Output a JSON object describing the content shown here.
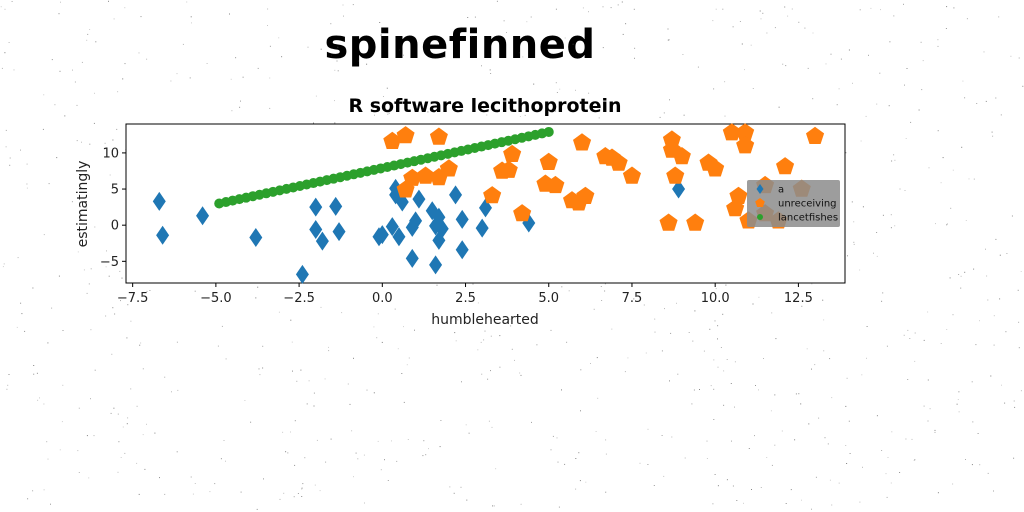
{
  "page": {
    "title": "spinefinned"
  },
  "colors": {
    "series_a": "#1f77b4",
    "series_unreceiving": "#ff7f0e",
    "series_lancetfishes": "#2ca02c",
    "legend_background": "#8c8c8c"
  },
  "chart_data": {
    "type": "scatter",
    "title": "R software lecithoprotein",
    "xlabel": "humblehearted",
    "ylabel": "estimatingly",
    "xlim": [
      -7.7,
      13.9
    ],
    "ylim": [
      -8,
      14
    ],
    "xticks": [
      -7.5,
      -5.0,
      -2.5,
      0.0,
      2.5,
      5.0,
      7.5,
      10.0,
      12.5
    ],
    "xtick_labels": [
      "−7.5",
      "−5.0",
      "−2.5",
      "0.0",
      "2.5",
      "5.0",
      "7.5",
      "10.0",
      "12.5"
    ],
    "yticks": [
      -5,
      0,
      5,
      10
    ],
    "ytick_labels": [
      "−5",
      "0",
      "5",
      "10"
    ],
    "grid": false,
    "legend_position": "right",
    "series": [
      {
        "name": "a",
        "marker": "diamond",
        "color": "#1f77b4",
        "points": [
          [
            -6.7,
            3.3
          ],
          [
            -6.6,
            -1.4
          ],
          [
            -5.4,
            1.3
          ],
          [
            -3.8,
            -1.7
          ],
          [
            -2.4,
            -6.8
          ],
          [
            -2.0,
            2.5
          ],
          [
            -2.0,
            -0.6
          ],
          [
            -1.8,
            -2.2
          ],
          [
            -1.4,
            2.6
          ],
          [
            -1.3,
            -0.9
          ],
          [
            -0.1,
            -1.6
          ],
          [
            0.0,
            -1.3
          ],
          [
            0.3,
            -0.2
          ],
          [
            0.4,
            4.2
          ],
          [
            0.4,
            5.1
          ],
          [
            0.5,
            -1.6
          ],
          [
            0.6,
            3.2
          ],
          [
            0.9,
            -4.6
          ],
          [
            0.9,
            -0.3
          ],
          [
            1.0,
            0.6
          ],
          [
            1.1,
            3.6
          ],
          [
            1.5,
            2.0
          ],
          [
            1.6,
            -5.5
          ],
          [
            1.6,
            -0.1
          ],
          [
            1.7,
            -2.1
          ],
          [
            1.7,
            1.1
          ],
          [
            1.8,
            -0.5
          ],
          [
            2.2,
            4.2
          ],
          [
            2.4,
            0.8
          ],
          [
            2.4,
            -3.4
          ],
          [
            3.0,
            -0.4
          ],
          [
            3.1,
            2.4
          ],
          [
            4.4,
            0.3
          ],
          [
            8.9,
            5.0
          ]
        ]
      },
      {
        "name": "unreceiving",
        "marker": "pentagon",
        "color": "#ff7f0e",
        "points": [
          [
            0.3,
            11.6
          ],
          [
            0.7,
            12.4
          ],
          [
            0.7,
            4.9
          ],
          [
            0.9,
            6.5
          ],
          [
            1.3,
            6.8
          ],
          [
            1.7,
            12.2
          ],
          [
            1.7,
            6.6
          ],
          [
            2.0,
            7.8
          ],
          [
            3.3,
            4.1
          ],
          [
            3.6,
            7.5
          ],
          [
            3.8,
            7.6
          ],
          [
            3.9,
            9.8
          ],
          [
            4.2,
            1.6
          ],
          [
            4.9,
            5.7
          ],
          [
            5.0,
            8.7
          ],
          [
            5.2,
            5.5
          ],
          [
            5.7,
            3.4
          ],
          [
            5.9,
            3.1
          ],
          [
            6.0,
            11.4
          ],
          [
            6.1,
            4.0
          ],
          [
            6.7,
            9.5
          ],
          [
            6.9,
            9.3
          ],
          [
            7.1,
            8.6
          ],
          [
            7.5,
            6.8
          ],
          [
            8.6,
            0.3
          ],
          [
            8.7,
            11.8
          ],
          [
            8.7,
            10.4
          ],
          [
            8.8,
            6.8
          ],
          [
            9.0,
            9.5
          ],
          [
            9.4,
            0.3
          ],
          [
            9.8,
            8.6
          ],
          [
            10.0,
            7.8
          ],
          [
            10.5,
            12.8
          ],
          [
            10.6,
            2.3
          ],
          [
            10.7,
            4.0
          ],
          [
            10.9,
            12.8
          ],
          [
            10.9,
            11.0
          ],
          [
            11.0,
            0.6
          ],
          [
            11.5,
            5.5
          ],
          [
            11.5,
            1.6
          ],
          [
            11.9,
            0.6
          ],
          [
            12.1,
            8.1
          ],
          [
            12.6,
            5.0
          ],
          [
            13.0,
            12.3
          ]
        ]
      },
      {
        "name": "lancetfishes",
        "marker": "circle",
        "color": "#2ca02c",
        "line_from": [
          -4.9,
          3.0
        ],
        "line_to": [
          5.0,
          12.9
        ],
        "n_points": 50
      }
    ]
  }
}
